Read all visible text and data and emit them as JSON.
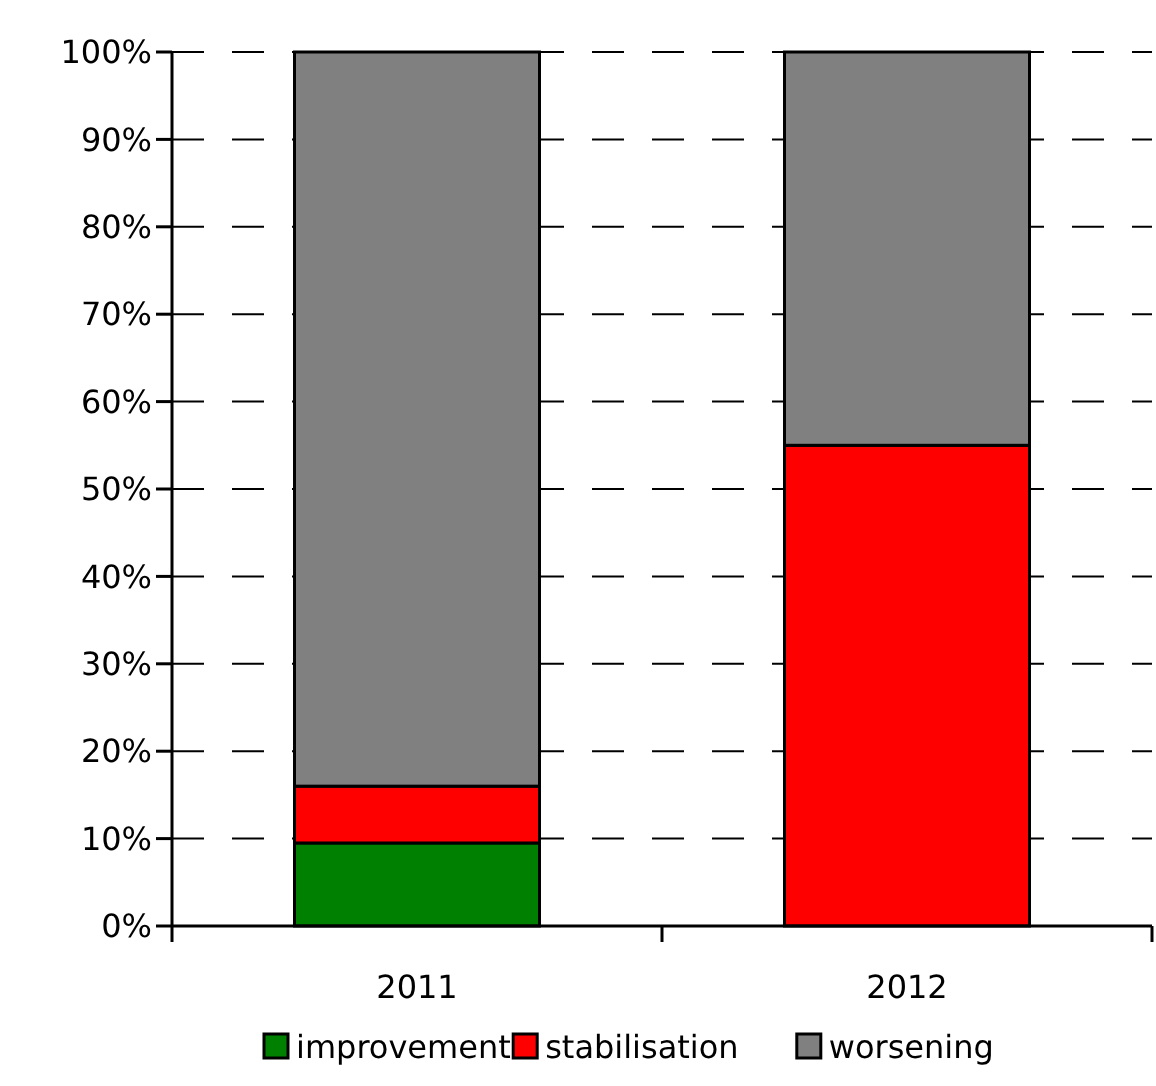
{
  "chart_data": {
    "type": "bar",
    "stacked": true,
    "categories": [
      "2011",
      "2012"
    ],
    "series": [
      {
        "name": "improvement",
        "color": "#008000",
        "values": [
          9.5,
          0
        ]
      },
      {
        "name": "stabilisation",
        "color": "#ff0000",
        "values": [
          6.5,
          55
        ]
      },
      {
        "name": "worsening",
        "color": "#808080",
        "values": [
          84,
          45
        ]
      }
    ],
    "ylim": [
      0,
      100
    ],
    "yticks": [
      {
        "value": 0,
        "label": "0%"
      },
      {
        "value": 10,
        "label": "10%"
      },
      {
        "value": 20,
        "label": "20%"
      },
      {
        "value": 30,
        "label": "30%"
      },
      {
        "value": 40,
        "label": "40%"
      },
      {
        "value": 50,
        "label": "50%"
      },
      {
        "value": 60,
        "label": "60%"
      },
      {
        "value": 70,
        "label": "70%"
      },
      {
        "value": 80,
        "label": "80%"
      },
      {
        "value": 90,
        "label": "90%"
      },
      {
        "value": 100,
        "label": "100%"
      }
    ],
    "grid": "y",
    "legend": "bottom"
  }
}
